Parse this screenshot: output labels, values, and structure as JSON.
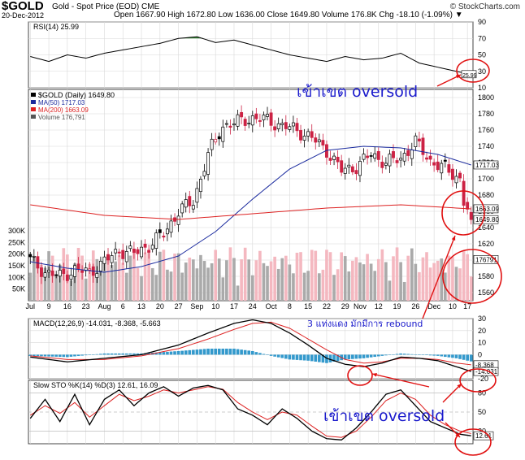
{
  "header": {
    "symbol": "$GOLD",
    "description": "Gold - Spot Price (EOD)  CME",
    "site": "© StockCharts.com",
    "date": "20-Dec-2012",
    "quote": "Open 1667.90  High 1672.80  Low 1636.00  Close 1649.80  Volume 176.8K  Chg -18.10 (-1.09%) ▼"
  },
  "annotations": {
    "oversold_top": "เข้าเขต oversold",
    "oversold_bottom": "เข้าเขต oversold",
    "rebound_note": "3 แท่งแดง มักมีการ rebound"
  },
  "colors": {
    "up": "#000000",
    "down": "#cc2244",
    "ma50": "#1a2a9e",
    "ma200": "#dd2222",
    "rsi_fill": "#3a8a3a",
    "macd_hist": "#3399cc",
    "vol_up": "#aaaaaa",
    "vol_down": "#f4b8c0",
    "annotation": "#1a1acc",
    "circle": "#e01010"
  },
  "chart_data": [
    {
      "type": "line",
      "panel": "RSI",
      "legend": "RSI(14) 25.99",
      "last_label": "25.99",
      "ylim": [
        10,
        90
      ],
      "ticks": [
        10,
        30,
        50,
        70,
        90
      ],
      "x": [
        0,
        5,
        10,
        15,
        20,
        25,
        30,
        35,
        40,
        45,
        50,
        55,
        60,
        65,
        70,
        75,
        80,
        85,
        90,
        95,
        100,
        105,
        110,
        115,
        119
      ],
      "values": [
        48,
        42,
        50,
        46,
        52,
        56,
        60,
        64,
        70,
        72,
        65,
        68,
        62,
        56,
        50,
        46,
        42,
        48,
        44,
        46,
        52,
        40,
        35,
        30,
        26
      ]
    },
    {
      "type": "candlestick",
      "panel": "Price",
      "legend": [
        "$GOLD (Daily) 1649.80",
        "MA(50) 1717.03",
        "MA(200) 1663.09",
        "Volume 176,791"
      ],
      "ylim": [
        1550,
        1810
      ],
      "price_ticks": [
        1560,
        1580,
        1600,
        1620,
        1640,
        1660,
        1680,
        1700,
        1720,
        1740,
        1760,
        1780,
        1800
      ],
      "volume_ticks": [
        "50K",
        "100K",
        "150K",
        "200K",
        "250K",
        "300K"
      ],
      "volume_max": 300000,
      "x_labels": [
        "Jul",
        "9",
        "16",
        "23",
        "Aug",
        "6",
        "13",
        "20",
        "27",
        "Sep",
        "10",
        "17",
        "24",
        "Oct",
        "8",
        "15",
        "22",
        "29",
        "Nov",
        "12",
        "19",
        "26",
        "Dec",
        "10",
        "17"
      ],
      "x_label_index": [
        0,
        5,
        10,
        15,
        20,
        25,
        30,
        35,
        40,
        45,
        50,
        55,
        60,
        65,
        70,
        75,
        80,
        85,
        89,
        94,
        99,
        104,
        109,
        114,
        118
      ],
      "close_points": {
        "x": [
          0,
          4,
          8,
          12,
          16,
          20,
          24,
          28,
          32,
          36,
          40,
          44,
          48,
          52,
          56,
          60,
          64,
          68,
          72,
          76,
          80,
          84,
          88,
          92,
          96,
          100,
          104,
          108,
          112,
          116,
          117,
          118,
          119
        ],
        "close": [
          1600,
          1585,
          1580,
          1588,
          1585,
          1598,
          1612,
          1608,
          1618,
          1632,
          1660,
          1672,
          1730,
          1765,
          1770,
          1775,
          1772,
          1765,
          1760,
          1750,
          1735,
          1710,
          1715,
          1730,
          1720,
          1725,
          1745,
          1722,
          1712,
          1700,
          1672,
          1662,
          1650
        ]
      },
      "ma50": {
        "x": [
          0,
          10,
          20,
          30,
          40,
          50,
          60,
          70,
          80,
          90,
          100,
          110,
          119
        ],
        "values": [
          1598,
          1590,
          1585,
          1592,
          1605,
          1635,
          1675,
          1712,
          1735,
          1740,
          1738,
          1730,
          1717
        ]
      },
      "ma200": {
        "x": [
          0,
          20,
          40,
          60,
          80,
          100,
          119
        ],
        "values": [
          1668,
          1655,
          1650,
          1657,
          1664,
          1668,
          1663
        ]
      },
      "last_labels": [
        "1717.03",
        "1663.09",
        "1649.80",
        "176791"
      ]
    },
    {
      "type": "line",
      "panel": "MACD",
      "legend": "MACD(12,26,9) -14.031, -8.368, -5.663",
      "ylim": [
        -20,
        30
      ],
      "ticks": [
        -20,
        -10,
        0,
        10,
        20,
        30
      ],
      "x": [
        0,
        10,
        20,
        30,
        40,
        48,
        55,
        60,
        65,
        70,
        75,
        80,
        85,
        90,
        95,
        100,
        105,
        110,
        115,
        119
      ],
      "macd": [
        -2,
        -6,
        -3,
        0,
        8,
        18,
        26,
        29,
        26,
        18,
        8,
        -3,
        -8,
        -10,
        -7,
        -2,
        -3,
        -5,
        -10,
        -14
      ],
      "signal": [
        -1,
        -4,
        -4,
        -1,
        5,
        13,
        21,
        26,
        27,
        22,
        13,
        4,
        -4,
        -7,
        -6,
        -3,
        -3,
        -4,
        -7,
        -8.4
      ],
      "last_labels": [
        "-8.368",
        "-14.031"
      ]
    },
    {
      "type": "line",
      "panel": "Slow STO",
      "legend": "Slow STO %K(14) %D(3) 12.61, 16.09",
      "ylim": [
        0,
        100
      ],
      "ticks": [
        20,
        50,
        80
      ],
      "x": [
        0,
        4,
        8,
        12,
        16,
        20,
        24,
        28,
        32,
        36,
        40,
        44,
        48,
        52,
        56,
        60,
        64,
        68,
        72,
        76,
        80,
        84,
        88,
        92,
        96,
        100,
        104,
        108,
        112,
        116,
        119
      ],
      "k": [
        40,
        70,
        35,
        78,
        30,
        70,
        85,
        60,
        80,
        90,
        75,
        88,
        92,
        85,
        55,
        45,
        30,
        55,
        40,
        20,
        8,
        6,
        25,
        50,
        78,
        85,
        60,
        35,
        25,
        15,
        12.6
      ],
      "d": [
        45,
        60,
        48,
        65,
        42,
        60,
        78,
        68,
        75,
        85,
        80,
        85,
        90,
        86,
        65,
        50,
        38,
        50,
        45,
        28,
        12,
        10,
        20,
        42,
        68,
        80,
        70,
        45,
        30,
        20,
        16.1
      ],
      "last_label": "12.61"
    }
  ]
}
